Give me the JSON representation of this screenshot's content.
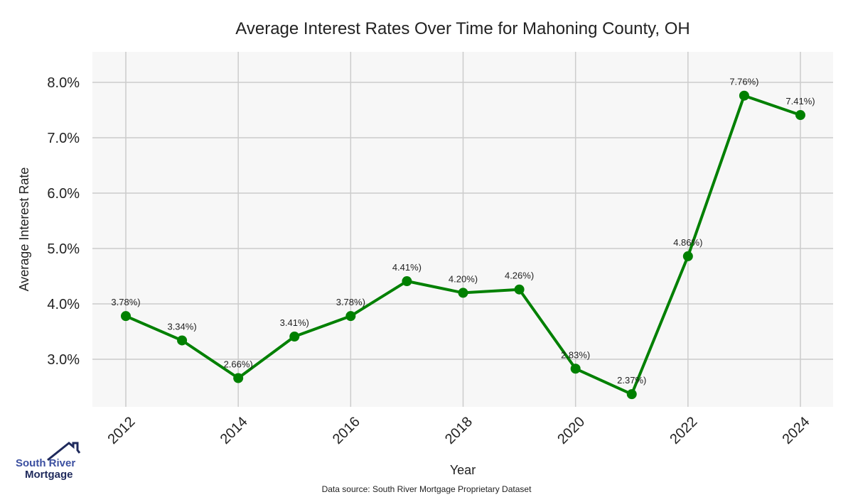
{
  "chart_data": {
    "type": "line",
    "title": "Average Interest Rates Over Time for Mahoning County, OH",
    "xlabel": "Year",
    "ylabel": "Average Interest Rate",
    "x": [
      2012,
      2013,
      2014,
      2015,
      2016,
      2017,
      2018,
      2019,
      2020,
      2021,
      2022,
      2023,
      2024
    ],
    "values": [
      3.78,
      3.34,
      2.66,
      3.41,
      3.78,
      4.41,
      4.2,
      4.26,
      2.83,
      2.37,
      4.86,
      7.76,
      7.41
    ],
    "data_labels": [
      "3.78%)",
      "3.34%)",
      "2.66%)",
      "3.41%)",
      "3.78%)",
      "4.41%)",
      "4.20%)",
      "4.26%)",
      "2.83%)",
      "2.37%)",
      "4.86%)",
      "7.76%)",
      "7.41%)"
    ],
    "xticks": [
      "2012",
      "2014",
      "2016",
      "2018",
      "2020",
      "2022",
      "2024"
    ],
    "yticks": [
      3,
      4,
      5,
      6,
      7,
      8
    ],
    "ytick_labels": [
      "3.0%",
      "4.0%",
      "5.0%",
      "6.0%",
      "7.0%",
      "8.0%"
    ],
    "ylim": [
      2.2,
      8.55
    ],
    "xlim": [
      2011.4,
      2024.6
    ],
    "grid": true,
    "line_color": "#008000",
    "background": "#f7f7f7"
  },
  "footer": {
    "source": "Data source: South River Mortgage Proprietary Dataset"
  },
  "logo": {
    "line1": "South River",
    "line2": "Mortgage"
  }
}
